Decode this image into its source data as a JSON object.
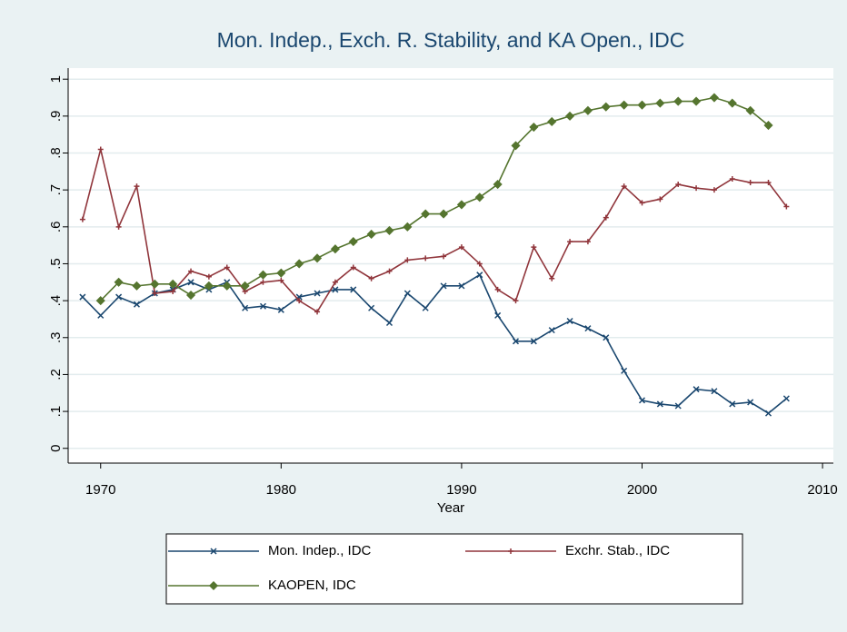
{
  "chart_data": {
    "type": "line",
    "title": "Mon. Indep., Exch. R. Stability, and KA Open., IDC",
    "x_label": "Year",
    "x": [
      1969,
      1970,
      1971,
      1972,
      1973,
      1974,
      1975,
      1976,
      1977,
      1978,
      1979,
      1980,
      1981,
      1982,
      1983,
      1984,
      1985,
      1986,
      1987,
      1988,
      1989,
      1990,
      1991,
      1992,
      1993,
      1994,
      1995,
      1996,
      1997,
      1998,
      1999,
      2000,
      2001,
      2002,
      2003,
      2004,
      2005,
      2006,
      2007,
      2008
    ],
    "series": [
      {
        "name": "Mon. Indep., IDC",
        "color": "#1a476f",
        "marker": "x",
        "values": [
          0.41,
          0.36,
          0.41,
          0.39,
          0.42,
          0.43,
          0.45,
          0.43,
          0.45,
          0.38,
          0.385,
          0.375,
          0.41,
          0.42,
          0.43,
          0.43,
          0.38,
          0.34,
          0.42,
          0.38,
          0.44,
          0.44,
          0.47,
          0.36,
          0.29,
          0.29,
          0.32,
          0.345,
          0.325,
          0.3,
          0.21,
          0.13,
          0.12,
          0.115,
          0.16,
          0.155,
          0.12,
          0.125,
          0.095,
          0.135
        ]
      },
      {
        "name": "Exchr. Stab., IDC",
        "color": "#90353b",
        "marker": "plus",
        "values": [
          0.62,
          0.81,
          0.6,
          0.71,
          0.42,
          0.425,
          0.48,
          0.465,
          0.49,
          0.425,
          0.45,
          0.455,
          0.4,
          0.37,
          0.45,
          0.49,
          0.46,
          0.48,
          0.51,
          0.515,
          0.52,
          0.545,
          0.5,
          0.43,
          0.4,
          0.545,
          0.46,
          0.56,
          0.56,
          0.625,
          0.71,
          0.665,
          0.675,
          0.715,
          0.705,
          0.7,
          0.73,
          0.72,
          0.72,
          0.655
        ]
      },
      {
        "name": "KAOPEN, IDC",
        "color": "#55752f",
        "marker": "diamond",
        "values": [
          null,
          0.4,
          0.45,
          0.44,
          0.445,
          0.445,
          0.415,
          0.44,
          0.44,
          0.44,
          0.47,
          0.475,
          0.5,
          0.515,
          0.54,
          0.56,
          0.58,
          0.59,
          0.6,
          0.635,
          0.635,
          0.66,
          0.68,
          0.715,
          0.82,
          0.87,
          0.885,
          0.9,
          0.915,
          0.925,
          0.93,
          0.93,
          0.935,
          0.94,
          0.94,
          0.95,
          0.935,
          0.915,
          0.875,
          null
        ]
      }
    ],
    "xlim": [
      1968.2,
      2010.6
    ],
    "xticks": [
      1970,
      1980,
      1990,
      2000,
      2010
    ],
    "ylim": [
      -0.04,
      1.03
    ],
    "yticks": [
      0,
      {
        "value": 0.1,
        "label": ".1"
      },
      {
        "value": 0.2,
        "label": ".2"
      },
      {
        "value": 0.3,
        "label": ".3"
      },
      {
        "value": 0.4,
        "label": ".4"
      },
      {
        "value": 0.5,
        "label": ".5"
      },
      {
        "value": 0.6,
        "label": ".6"
      },
      {
        "value": 0.7,
        "label": ".7"
      },
      {
        "value": 0.8,
        "label": ".8"
      },
      {
        "value": 0.9,
        "label": ".9"
      },
      1
    ],
    "grid": true
  }
}
